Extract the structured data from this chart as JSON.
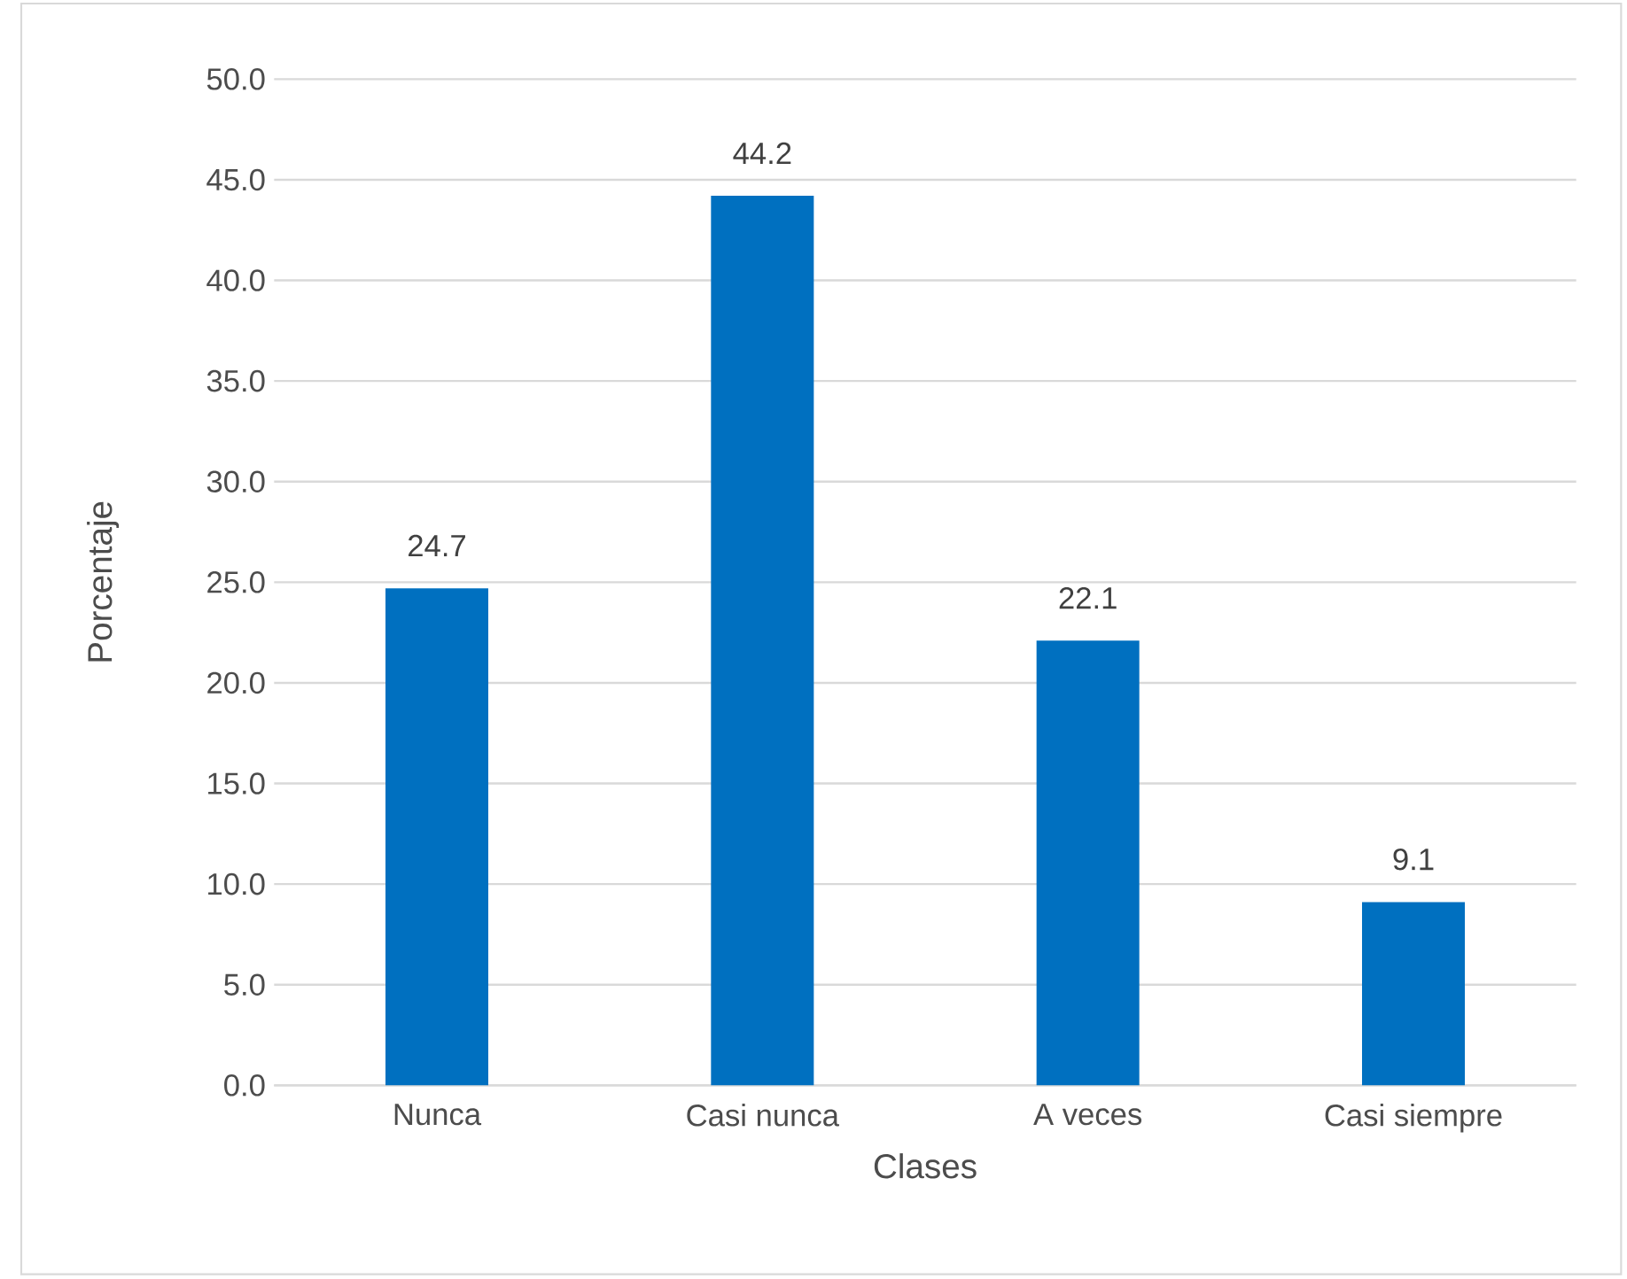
{
  "chart_data": {
    "type": "bar",
    "xlabel": "Clases",
    "ylabel": "Porcentaje",
    "categories": [
      "Nunca",
      "Casi nunca",
      "A veces",
      "Casi siempre"
    ],
    "values": [
      24.7,
      44.2,
      22.1,
      9.1
    ],
    "color": "#0070c0",
    "ylim": [
      0,
      50
    ],
    "yticks": [
      {
        "value": 0,
        "label": "0.0"
      },
      {
        "value": 5,
        "label": "5.0"
      },
      {
        "value": 10,
        "label": "10.0"
      },
      {
        "value": 15,
        "label": "15.0"
      },
      {
        "value": 20,
        "label": "20.0"
      },
      {
        "value": 25,
        "label": "25.0"
      },
      {
        "value": 30,
        "label": "30.0"
      },
      {
        "value": 35,
        "label": "35.0"
      },
      {
        "value": 40,
        "label": "40.0"
      },
      {
        "value": 45,
        "label": "45.0"
      },
      {
        "value": 50,
        "label": "50.0"
      }
    ],
    "grid": "y",
    "data_labels": true
  }
}
